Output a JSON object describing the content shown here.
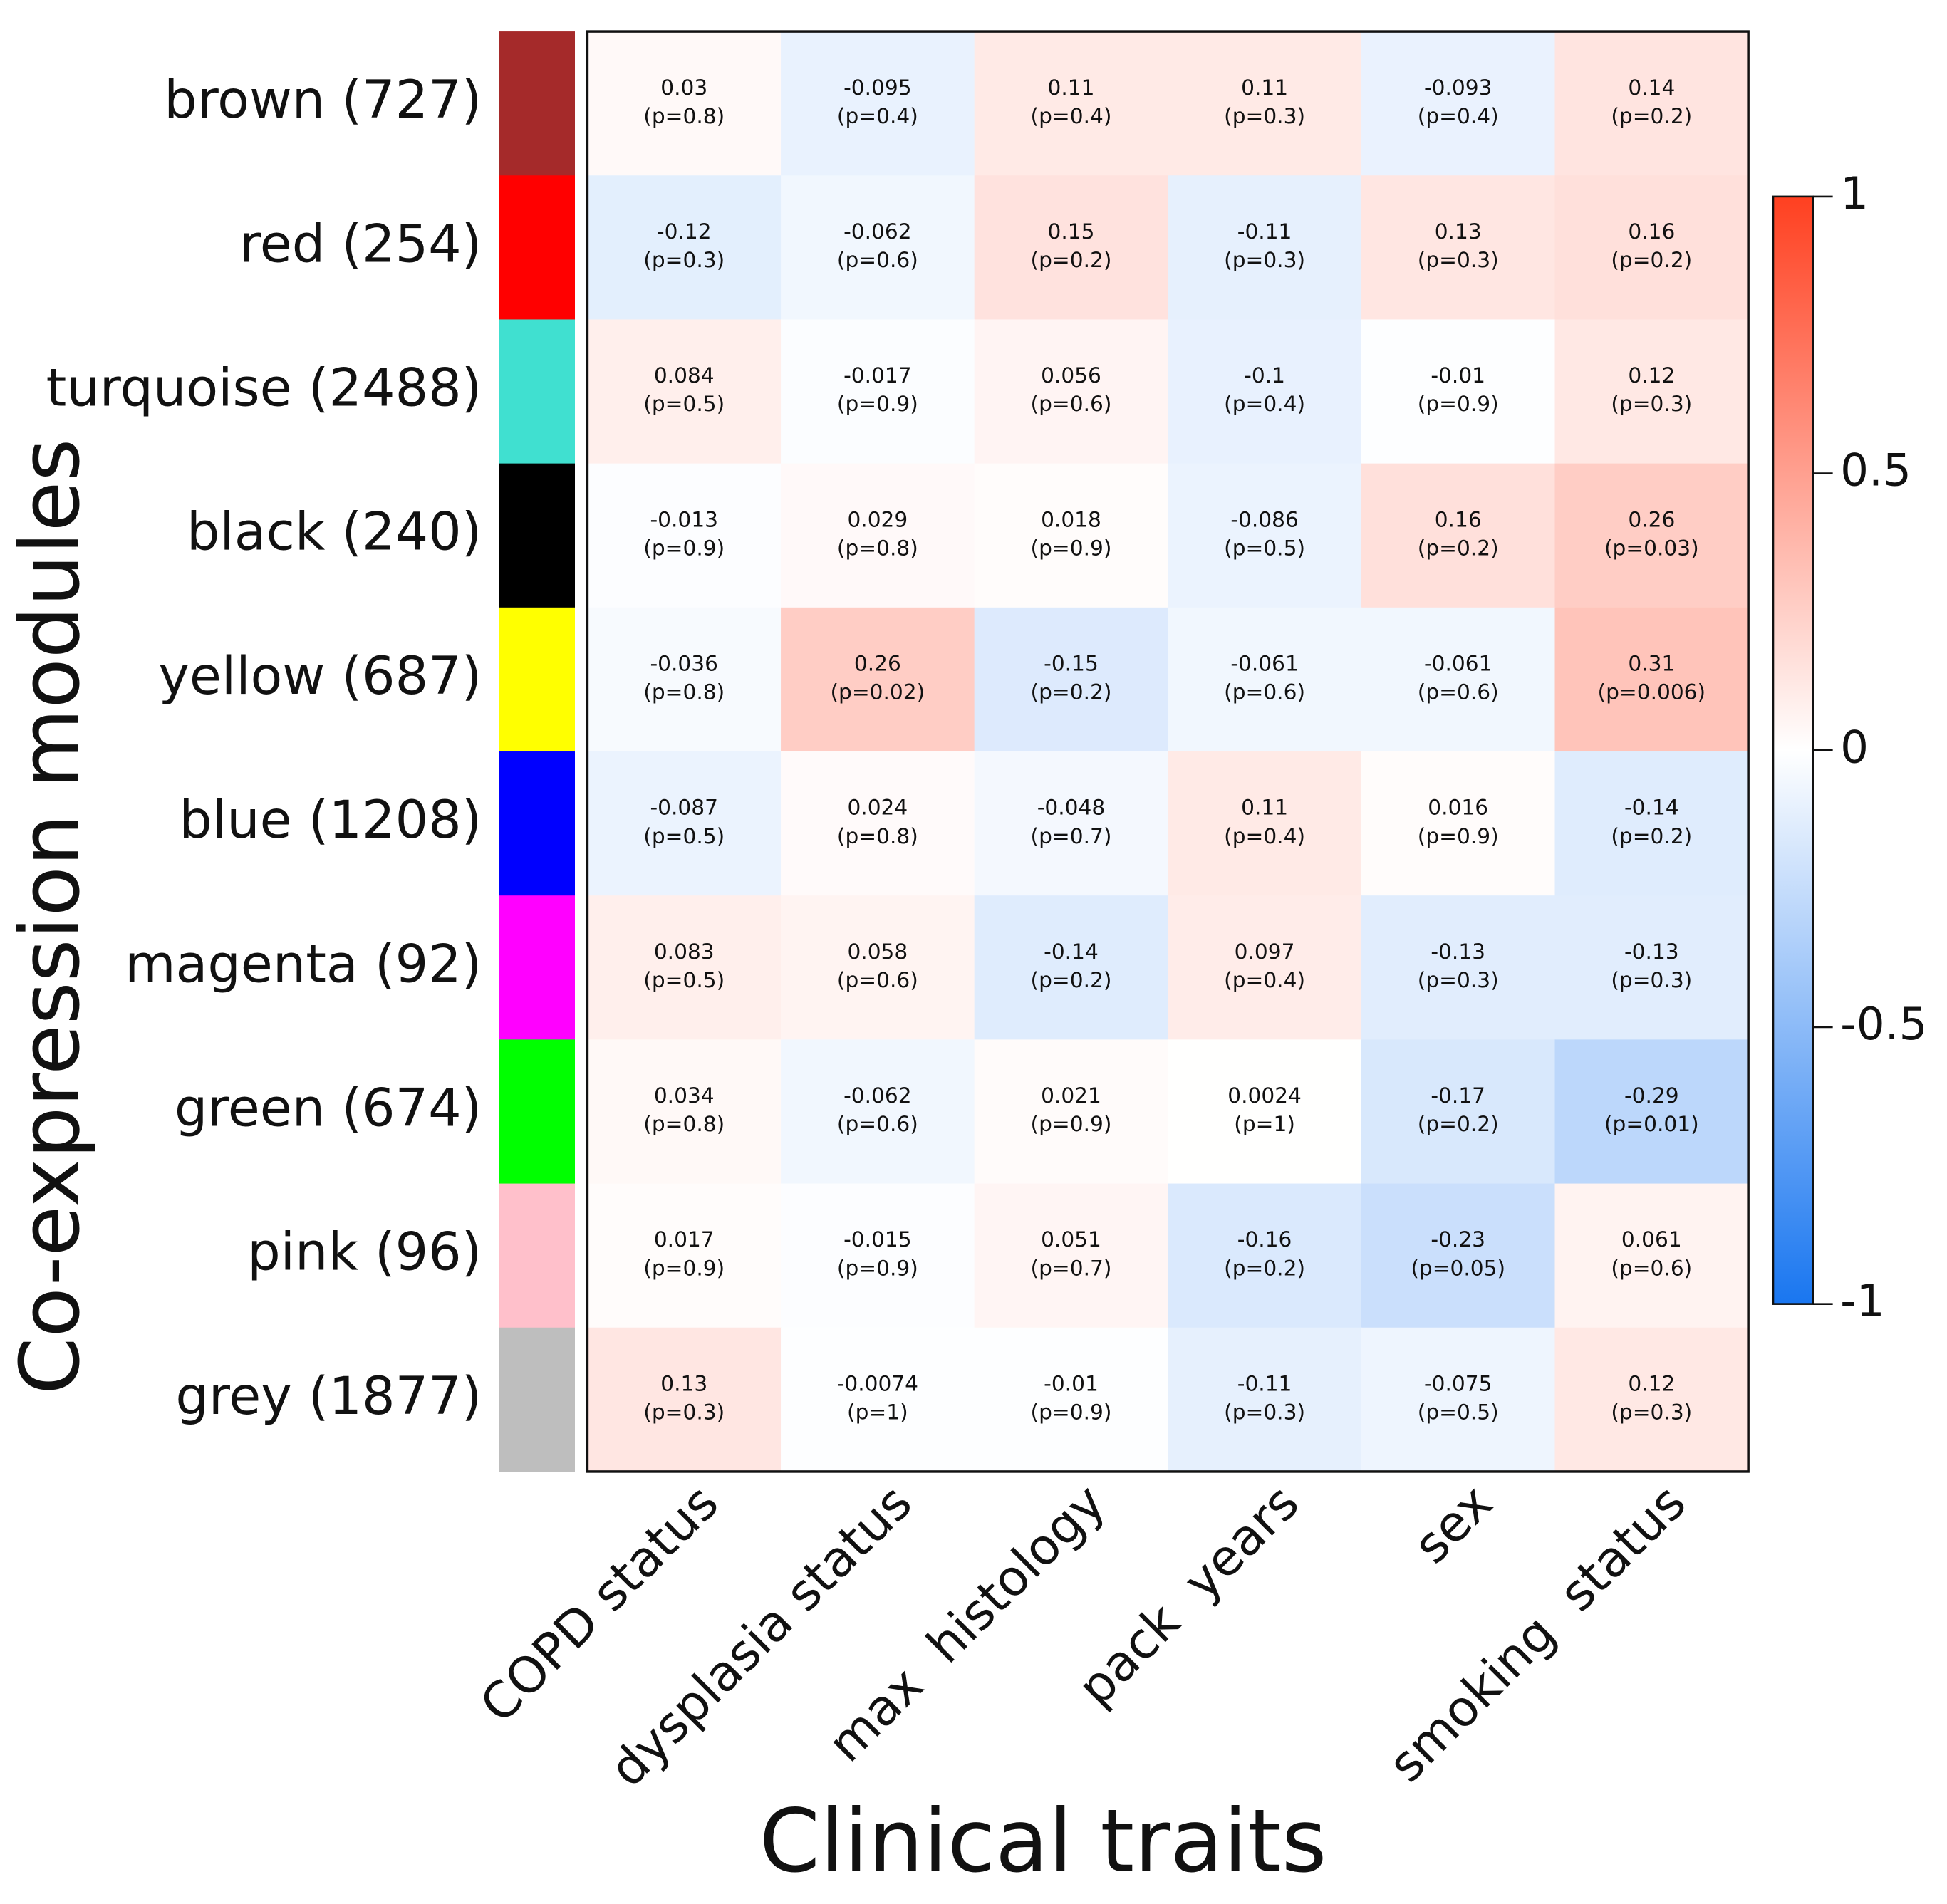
{
  "chart_data": {
    "type": "heatmap",
    "x_label": "Clinical traits",
    "y_label": "Co-expression modules",
    "categories": [
      "COPD status",
      "dysplasia status",
      "max  histology",
      "pack  years",
      "sex",
      "smoking  status"
    ],
    "rows": [
      {
        "name": "brown (727)",
        "color": "#a52a2a"
      },
      {
        "name": "red (254)",
        "color": "#ff0000"
      },
      {
        "name": "turquoise (2488)",
        "color": "#40e0d0"
      },
      {
        "name": "black (240)",
        "color": "#000000"
      },
      {
        "name": "yellow (687)",
        "color": "#ffff00"
      },
      {
        "name": "blue (1208)",
        "color": "#0000ff"
      },
      {
        "name": "magenta (92)",
        "color": "#ff00ff"
      },
      {
        "name": "green (674)",
        "color": "#00ff00"
      },
      {
        "name": "pink (96)",
        "color": "#ffc0cb"
      },
      {
        "name": "grey (1877)",
        "color": "#bebebe"
      }
    ],
    "values": [
      [
        0.03,
        -0.095,
        0.11,
        0.11,
        -0.093,
        0.14
      ],
      [
        -0.12,
        -0.062,
        0.15,
        -0.11,
        0.13,
        0.16
      ],
      [
        0.084,
        -0.017,
        0.056,
        -0.1,
        -0.01,
        0.12
      ],
      [
        -0.013,
        0.029,
        0.018,
        -0.086,
        0.16,
        0.26
      ],
      [
        -0.036,
        0.26,
        -0.15,
        -0.061,
        -0.061,
        0.31
      ],
      [
        -0.087,
        0.024,
        -0.048,
        0.11,
        0.016,
        -0.14
      ],
      [
        0.083,
        0.058,
        -0.14,
        0.097,
        -0.13,
        -0.13
      ],
      [
        0.034,
        -0.062,
        0.021,
        0.0024,
        -0.17,
        -0.29
      ],
      [
        0.017,
        -0.015,
        0.051,
        -0.16,
        -0.23,
        0.061
      ],
      [
        0.13,
        -0.0074,
        -0.01,
        -0.11,
        -0.075,
        0.12
      ]
    ],
    "p_labels": [
      [
        "(p=0.8)",
        "(p=0.4)",
        "(p=0.4)",
        "(p=0.3)",
        "(p=0.4)",
        "(p=0.2)"
      ],
      [
        "(p=0.3)",
        "(p=0.6)",
        "(p=0.2)",
        "(p=0.3)",
        "(p=0.3)",
        "(p=0.2)"
      ],
      [
        "(p=0.5)",
        "(p=0.9)",
        "(p=0.6)",
        "(p=0.4)",
        "(p=0.9)",
        "(p=0.3)"
      ],
      [
        "(p=0.9)",
        "(p=0.8)",
        "(p=0.9)",
        "(p=0.5)",
        "(p=0.2)",
        "(p=0.03)"
      ],
      [
        "(p=0.8)",
        "(p=0.02)",
        "(p=0.2)",
        "(p=0.6)",
        "(p=0.6)",
        "(p=0.006)"
      ],
      [
        "(p=0.5)",
        "(p=0.8)",
        "(p=0.7)",
        "(p=0.4)",
        "(p=0.9)",
        "(p=0.2)"
      ],
      [
        "(p=0.5)",
        "(p=0.6)",
        "(p=0.2)",
        "(p=0.4)",
        "(p=0.3)",
        "(p=0.3)"
      ],
      [
        "(p=0.8)",
        "(p=0.6)",
        "(p=0.9)",
        "(p=1)",
        "(p=0.2)",
        "(p=0.01)"
      ],
      [
        "(p=0.9)",
        "(p=0.9)",
        "(p=0.7)",
        "(p=0.2)",
        "(p=0.05)",
        "(p=0.6)"
      ],
      [
        "(p=0.3)",
        "(p=1)",
        "(p=0.9)",
        "(p=0.3)",
        "(p=0.5)",
        "(p=0.3)"
      ]
    ],
    "colormap": [
      "#1976f0",
      "#ffffff",
      "#ff4020"
    ],
    "ylim": [
      -1,
      1
    ],
    "yticks": [
      -1,
      -0.5,
      0,
      0.5,
      1
    ]
  }
}
